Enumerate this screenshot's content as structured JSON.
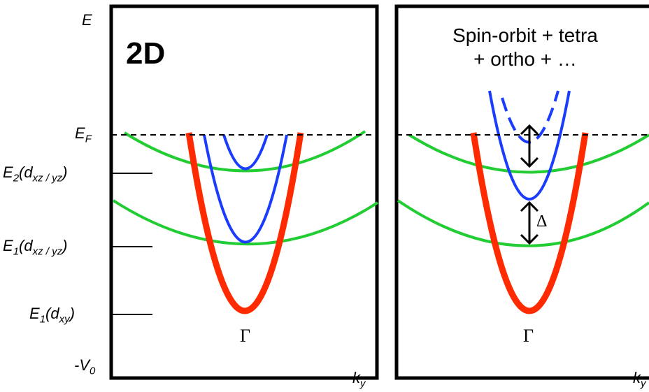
{
  "axes": {
    "energy_label": "E",
    "fermi_label": {
      "main": "E",
      "sub": "F"
    },
    "levels": [
      {
        "main": "E",
        "sub": "2",
        "paren": "(d",
        "sub2": "xz / yz",
        "close": ")"
      },
      {
        "main": "E",
        "sub": "1",
        "paren": "(d",
        "sub2": "xz / yz",
        "close": ")"
      },
      {
        "main": "E",
        "sub": "1",
        "paren": "(d",
        "sub2": "xy",
        "close": ")"
      }
    ],
    "bottom_label": {
      "main": "-V",
      "sub": "0"
    },
    "k_label": {
      "main": "k",
      "sub": "y"
    }
  },
  "left_panel": {
    "title": "2D",
    "gamma": "Γ"
  },
  "right_panel": {
    "annotation_line1": "Spin-orbit + tetra",
    "annotation_line2": "+ ortho + …",
    "gamma": "Γ",
    "delta": "Δ"
  },
  "colors": {
    "dxy": "#ff2a00",
    "dxz_yz": "#1a3cff",
    "upper_bands": "#22cc33",
    "fermi_line": "#000000"
  }
}
